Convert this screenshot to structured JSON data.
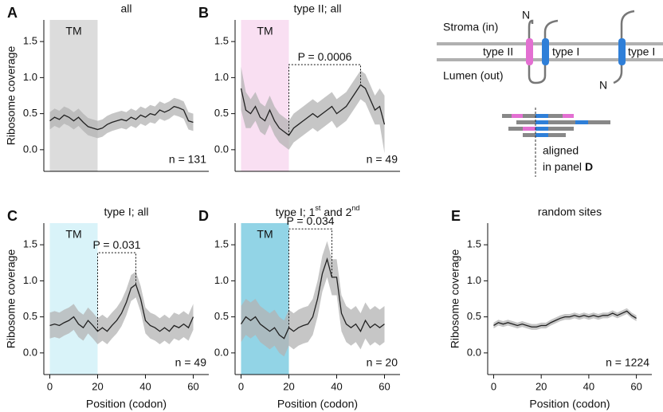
{
  "chart_data": [
    {
      "type": "line",
      "letter": "A",
      "title": "all",
      "ylabel": "Ribosome coverage",
      "n_label": "n = 131",
      "xlim": [
        -2.5,
        66.5
      ],
      "ylim": [
        -0.3,
        1.8
      ],
      "yticks": [
        {
          "value": 0,
          "label": "0.0"
        },
        0.5,
        {
          "value": 1,
          "label": "1.0"
        },
        1.5
      ],
      "shade": {
        "label": "TM",
        "range": [
          0,
          20
        ],
        "color": "#dcdcdc"
      },
      "line_color": "#222222",
      "band_color": "#b3b3b3",
      "x": [
        0,
        2,
        4,
        6,
        8,
        10,
        12,
        14,
        16,
        18,
        20,
        22,
        24,
        26,
        28,
        30,
        32,
        34,
        36,
        38,
        40,
        42,
        44,
        46,
        48,
        50,
        52,
        54,
        56,
        58,
        60
      ],
      "values": [
        0.4,
        0.45,
        0.42,
        0.48,
        0.45,
        0.4,
        0.45,
        0.38,
        0.32,
        0.3,
        0.28,
        0.3,
        0.35,
        0.38,
        0.4,
        0.42,
        0.4,
        0.45,
        0.42,
        0.48,
        0.45,
        0.5,
        0.48,
        0.55,
        0.52,
        0.55,
        0.6,
        0.58,
        0.55,
        0.4,
        0.38
      ],
      "band_low": [
        0.28,
        0.33,
        0.3,
        0.36,
        0.33,
        0.28,
        0.33,
        0.26,
        0.2,
        0.18,
        0.16,
        0.18,
        0.23,
        0.26,
        0.28,
        0.3,
        0.28,
        0.33,
        0.3,
        0.36,
        0.33,
        0.38,
        0.36,
        0.43,
        0.4,
        0.43,
        0.48,
        0.46,
        0.43,
        0.28,
        0.26
      ],
      "band_high": [
        0.52,
        0.57,
        0.54,
        0.6,
        0.57,
        0.52,
        0.57,
        0.5,
        0.44,
        0.42,
        0.4,
        0.42,
        0.47,
        0.5,
        0.52,
        0.54,
        0.52,
        0.57,
        0.54,
        0.6,
        0.57,
        0.62,
        0.6,
        0.67,
        0.64,
        0.67,
        0.72,
        0.7,
        0.67,
        0.52,
        0.5
      ]
    },
    {
      "type": "line",
      "letter": "B",
      "title": "type II; all",
      "n_label": "n = 49",
      "xlim": [
        -2.5,
        66.5
      ],
      "ylim": [
        -0.3,
        1.8
      ],
      "yticks": [
        {
          "value": 0,
          "label": "0.0"
        },
        0.5,
        {
          "value": 1,
          "label": "1.0"
        },
        1.5
      ],
      "shade": {
        "label": "TM",
        "range": [
          0,
          20
        ],
        "color": "#f9dff2"
      },
      "bracket": {
        "x": [
          20,
          50
        ],
        "y": 1.18,
        "label": "P = 0.0006"
      },
      "line_color": "#222222",
      "band_color": "#b3b3b3",
      "x": [
        0,
        2,
        4,
        6,
        8,
        10,
        12,
        14,
        16,
        18,
        20,
        22,
        24,
        26,
        28,
        30,
        32,
        34,
        36,
        38,
        40,
        42,
        44,
        46,
        48,
        50,
        52,
        54,
        56,
        58,
        60
      ],
      "values": [
        0.85,
        0.55,
        0.5,
        0.6,
        0.45,
        0.4,
        0.55,
        0.4,
        0.3,
        0.25,
        0.2,
        0.3,
        0.35,
        0.4,
        0.45,
        0.5,
        0.45,
        0.5,
        0.55,
        0.6,
        0.5,
        0.55,
        0.6,
        0.7,
        0.8,
        0.9,
        0.85,
        0.7,
        0.55,
        0.6,
        0.35
      ],
      "band_low": [
        0.55,
        0.3,
        0.3,
        0.4,
        0.25,
        0.2,
        0.35,
        0.2,
        0.1,
        0.05,
        0.0,
        0.1,
        0.15,
        0.2,
        0.25,
        0.3,
        0.25,
        0.3,
        0.35,
        0.4,
        0.3,
        0.35,
        0.4,
        0.5,
        0.6,
        0.7,
        0.65,
        0.5,
        0.35,
        0.35,
        -0.05
      ],
      "band_high": [
        1.15,
        0.8,
        0.7,
        0.8,
        0.65,
        0.6,
        0.75,
        0.6,
        0.5,
        0.45,
        0.4,
        0.5,
        0.55,
        0.6,
        0.65,
        0.7,
        0.65,
        0.7,
        0.75,
        0.8,
        0.7,
        0.75,
        0.8,
        0.9,
        1.0,
        1.1,
        1.05,
        0.9,
        0.75,
        0.85,
        0.75
      ]
    },
    {
      "type": "line",
      "letter": "C",
      "title": "type I; all",
      "ylabel": "Ribosome coverage",
      "xlabel": "Position (codon)",
      "n_label": "n = 49",
      "xlim": [
        -2.5,
        66.5
      ],
      "ylim": [
        -0.3,
        1.8
      ],
      "xticks": [
        0,
        20,
        40,
        60
      ],
      "yticks": [
        {
          "value": 0,
          "label": "0.0"
        },
        0.5,
        {
          "value": 1,
          "label": "1.0"
        },
        1.5
      ],
      "shade": {
        "label": "TM",
        "range": [
          0,
          20
        ],
        "color": "#d9f3f9"
      },
      "bracket": {
        "x": [
          20,
          36
        ],
        "y": 1.39,
        "label": "P = 0.031"
      },
      "line_color": "#222222",
      "band_color": "#b3b3b3",
      "x": [
        0,
        2,
        4,
        6,
        8,
        10,
        12,
        14,
        16,
        18,
        20,
        22,
        24,
        26,
        28,
        30,
        32,
        34,
        36,
        38,
        40,
        42,
        44,
        46,
        48,
        50,
        52,
        54,
        56,
        58,
        60
      ],
      "values": [
        0.38,
        0.4,
        0.38,
        0.42,
        0.45,
        0.5,
        0.4,
        0.35,
        0.45,
        0.38,
        0.3,
        0.35,
        0.3,
        0.38,
        0.45,
        0.55,
        0.7,
        0.9,
        0.95,
        0.75,
        0.45,
        0.38,
        0.35,
        0.3,
        0.35,
        0.3,
        0.38,
        0.35,
        0.4,
        0.35,
        0.5
      ],
      "band_low": [
        0.2,
        0.22,
        0.2,
        0.24,
        0.27,
        0.32,
        0.22,
        0.17,
        0.27,
        0.2,
        0.12,
        0.17,
        0.12,
        0.2,
        0.27,
        0.37,
        0.52,
        0.72,
        0.77,
        0.57,
        0.27,
        0.2,
        0.17,
        0.12,
        0.17,
        0.12,
        0.2,
        0.17,
        0.22,
        0.17,
        0.32
      ],
      "band_high": [
        0.56,
        0.58,
        0.56,
        0.6,
        0.63,
        0.68,
        0.58,
        0.53,
        0.63,
        0.56,
        0.48,
        0.53,
        0.48,
        0.56,
        0.63,
        0.73,
        0.88,
        1.08,
        1.13,
        0.93,
        0.63,
        0.56,
        0.53,
        0.48,
        0.53,
        0.48,
        0.56,
        0.53,
        0.58,
        0.53,
        0.68
      ]
    },
    {
      "type": "line",
      "letter": "D",
      "title": [
        {
          "text": "type I; 1"
        },
        {
          "text": "st",
          "sup": true
        },
        {
          "text": " and 2"
        },
        {
          "text": "nd",
          "sup": true
        }
      ],
      "xlabel": "Position (codon)",
      "n_label": "n = 20",
      "xlim": [
        -2.5,
        66.5
      ],
      "ylim": [
        -0.3,
        1.8
      ],
      "xticks": [
        0,
        20,
        40,
        60
      ],
      "yticks": [
        {
          "value": 0,
          "label": "0.0"
        },
        0.5,
        {
          "value": 1,
          "label": "1.0"
        },
        1.5
      ],
      "shade": {
        "label": "TM",
        "range": [
          0,
          20
        ],
        "color": "#92d4e6"
      },
      "bracket": {
        "x": [
          20,
          38
        ],
        "y": 1.72,
        "label": "P = 0.034"
      },
      "line_color": "#222222",
      "band_color": "#b3b3b3",
      "x": [
        0,
        2,
        4,
        6,
        8,
        10,
        12,
        14,
        16,
        18,
        20,
        22,
        24,
        26,
        28,
        30,
        32,
        34,
        36,
        38,
        40,
        42,
        44,
        46,
        48,
        50,
        52,
        54,
        56,
        58,
        60
      ],
      "values": [
        0.4,
        0.5,
        0.45,
        0.5,
        0.4,
        0.35,
        0.3,
        0.35,
        0.25,
        0.2,
        0.35,
        0.3,
        0.35,
        0.38,
        0.4,
        0.5,
        0.75,
        1.1,
        1.3,
        1.05,
        1.05,
        0.55,
        0.4,
        0.35,
        0.4,
        0.3,
        0.45,
        0.35,
        0.4,
        0.35,
        0.4
      ],
      "band_low": [
        0.15,
        0.25,
        0.2,
        0.25,
        0.15,
        0.1,
        0.05,
        0.1,
        0.0,
        -0.05,
        0.1,
        0.05,
        0.1,
        0.13,
        0.15,
        0.25,
        0.5,
        0.85,
        1.05,
        0.8,
        0.8,
        0.3,
        0.15,
        0.1,
        0.15,
        0.05,
        0.2,
        0.1,
        0.15,
        0.1,
        0.15
      ],
      "band_high": [
        0.65,
        0.75,
        0.7,
        0.75,
        0.65,
        0.6,
        0.55,
        0.6,
        0.5,
        0.45,
        0.6,
        0.55,
        0.6,
        0.63,
        0.65,
        0.75,
        1.0,
        1.35,
        1.55,
        1.3,
        1.3,
        0.8,
        0.65,
        0.6,
        0.65,
        0.55,
        0.7,
        0.6,
        0.65,
        0.6,
        0.65
      ]
    },
    {
      "type": "line",
      "letter": "E",
      "title": "random sites",
      "ylabel": "Ribosome coverage",
      "xlabel": "Position (codon)",
      "n_label": "n = 1224",
      "xlim": [
        -2.5,
        66.5
      ],
      "ylim": [
        -0.3,
        1.8
      ],
      "xticks": [
        0,
        20,
        40,
        60
      ],
      "yticks": [
        {
          "value": 0,
          "label": "0.0"
        },
        0.5,
        {
          "value": 1,
          "label": "1.0"
        },
        1.5
      ],
      "line_color": "#222222",
      "band_color": "#b3b3b3",
      "x": [
        0,
        2,
        4,
        6,
        8,
        10,
        12,
        14,
        16,
        18,
        20,
        22,
        24,
        26,
        28,
        30,
        32,
        34,
        36,
        38,
        40,
        42,
        44,
        46,
        48,
        50,
        52,
        54,
        56,
        58,
        60
      ],
      "values": [
        0.38,
        0.42,
        0.4,
        0.42,
        0.4,
        0.38,
        0.4,
        0.38,
        0.36,
        0.36,
        0.38,
        0.38,
        0.42,
        0.45,
        0.48,
        0.5,
        0.5,
        0.52,
        0.5,
        0.52,
        0.5,
        0.52,
        0.5,
        0.52,
        0.52,
        0.55,
        0.52,
        0.55,
        0.58,
        0.52,
        0.48
      ],
      "band_low": [
        0.34,
        0.38,
        0.36,
        0.38,
        0.36,
        0.34,
        0.36,
        0.34,
        0.32,
        0.32,
        0.34,
        0.34,
        0.38,
        0.41,
        0.44,
        0.46,
        0.46,
        0.48,
        0.46,
        0.48,
        0.46,
        0.48,
        0.46,
        0.48,
        0.48,
        0.51,
        0.48,
        0.51,
        0.54,
        0.48,
        0.44
      ],
      "band_high": [
        0.42,
        0.46,
        0.44,
        0.46,
        0.44,
        0.42,
        0.44,
        0.42,
        0.4,
        0.4,
        0.42,
        0.42,
        0.46,
        0.49,
        0.52,
        0.54,
        0.54,
        0.56,
        0.54,
        0.56,
        0.54,
        0.56,
        0.54,
        0.56,
        0.56,
        0.59,
        0.56,
        0.59,
        0.62,
        0.56,
        0.52
      ]
    }
  ],
  "diagram": {
    "stroma": "Stroma (in)",
    "lumen": "Lumen (out)",
    "type2": "type II",
    "type1a": "type I",
    "type1b": "type I",
    "n_top": "N",
    "n_bottom": "N",
    "aligned": "aligned",
    "in_panel": "in panel ",
    "panel_ref": "D"
  }
}
